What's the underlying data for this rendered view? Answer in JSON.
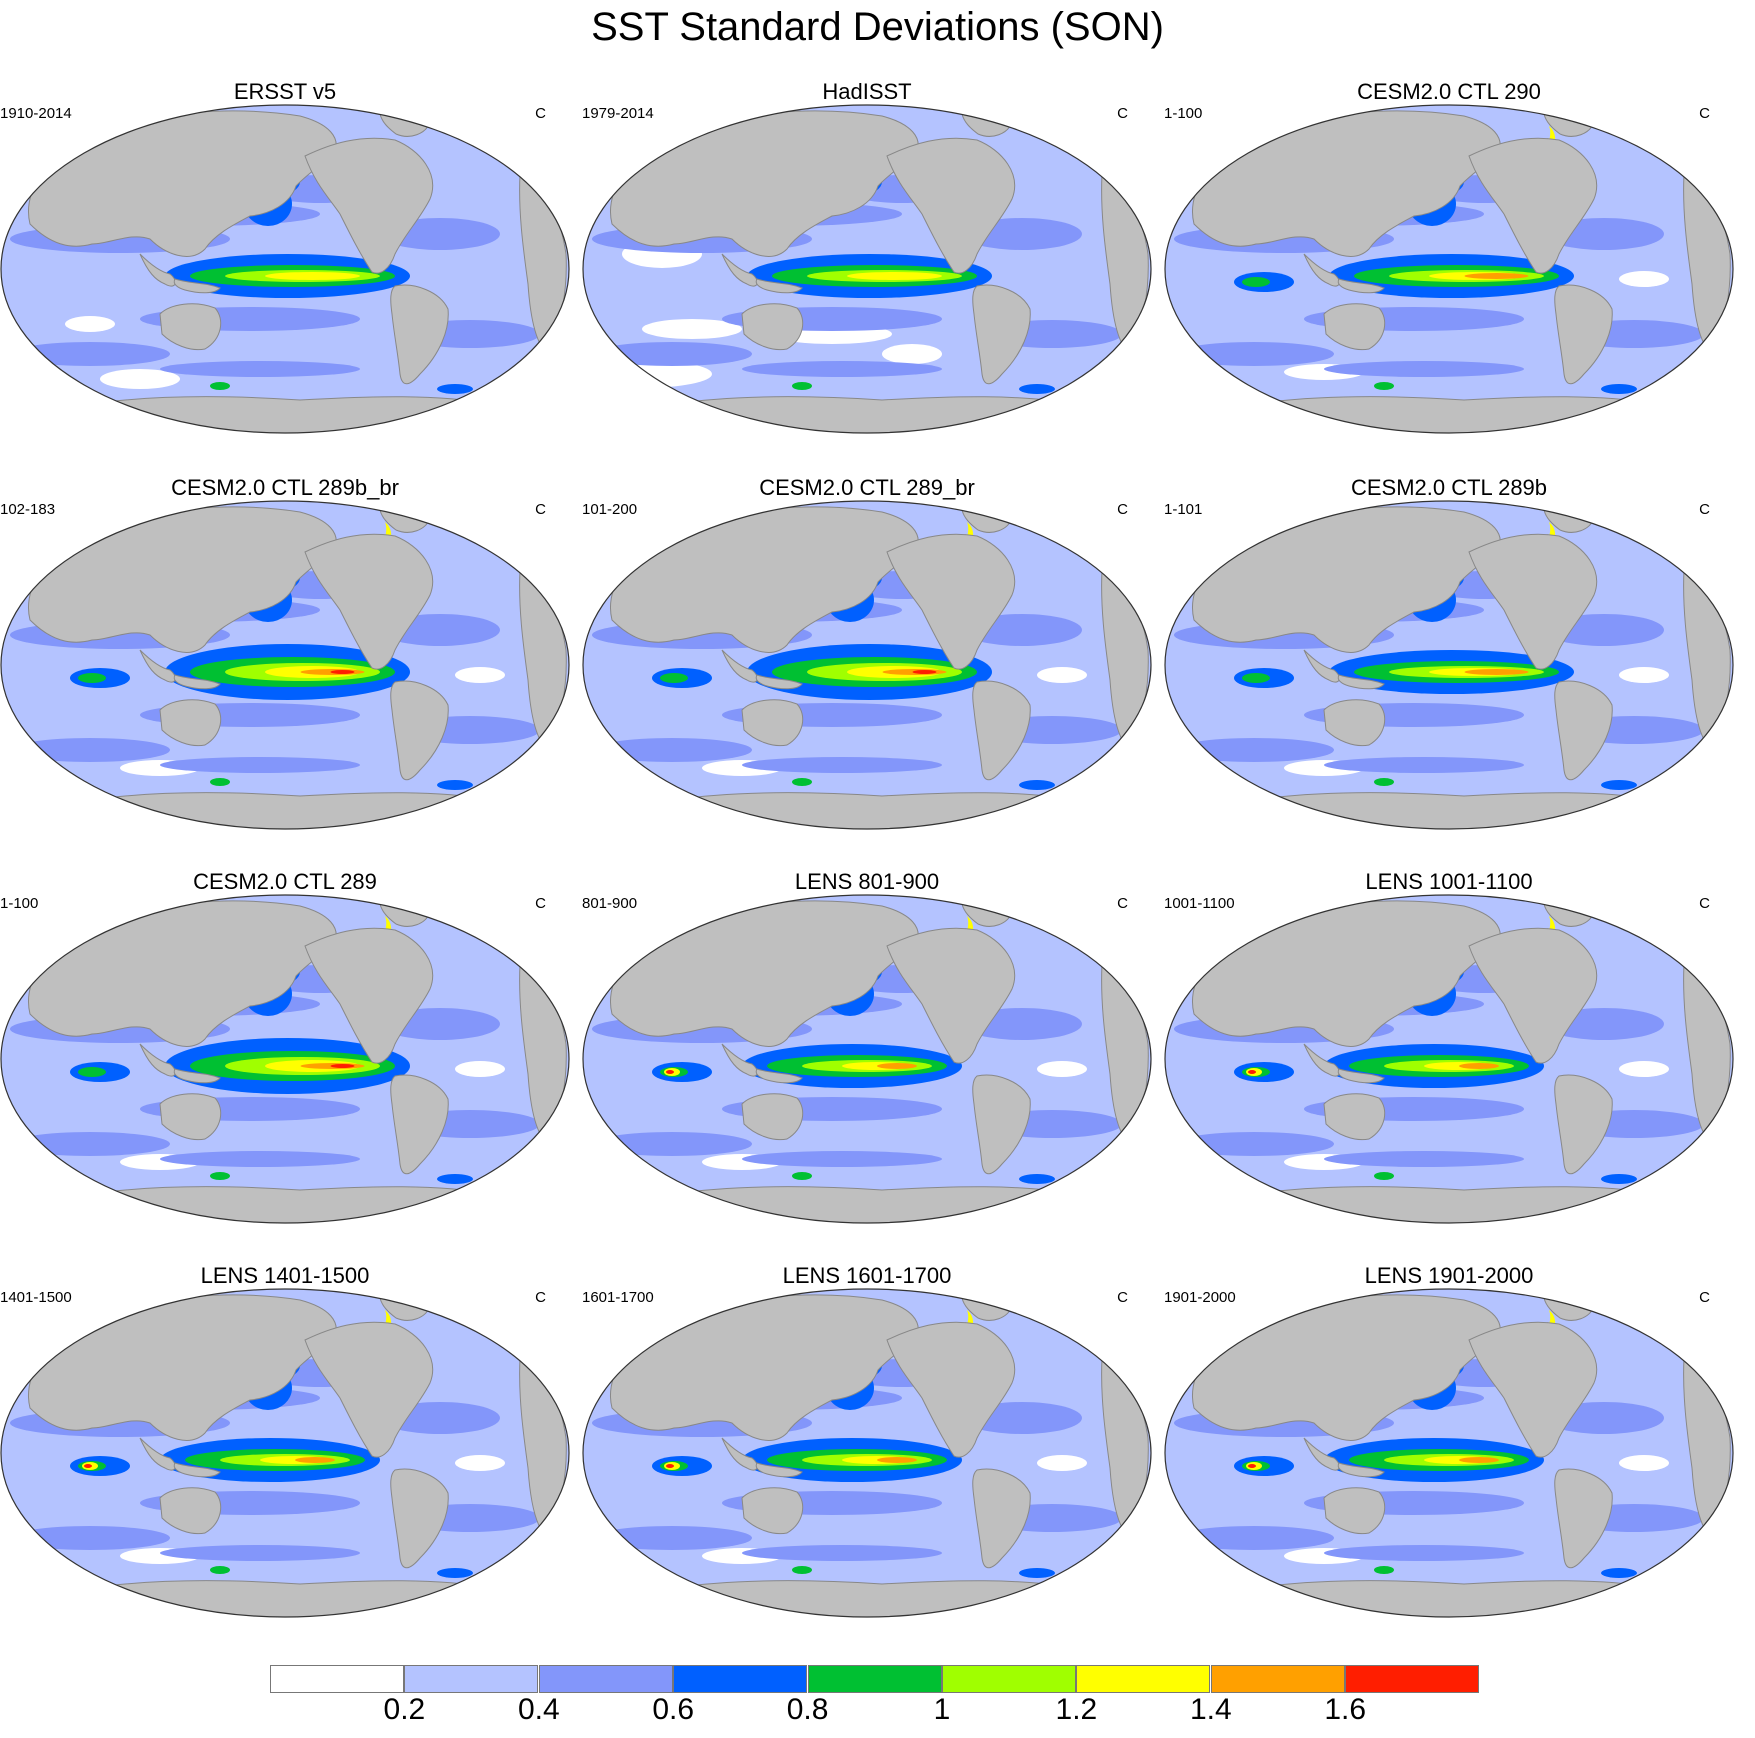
{
  "figure": {
    "title": "SST Standard Deviations (SON)",
    "units": "C"
  },
  "panels": [
    {
      "title": "ERSST v5",
      "period": "1910-2014",
      "units": "C",
      "style": "obs-ersst"
    },
    {
      "title": "HadISST",
      "period": "1979-2014",
      "units": "C",
      "style": "obs-hadisst"
    },
    {
      "title": "CESM2.0 CTL 290",
      "period": "1-100",
      "units": "C",
      "style": "model"
    },
    {
      "title": "CESM2.0 CTL 289b_br",
      "period": "102-183",
      "units": "C",
      "style": "model-strong"
    },
    {
      "title": "CESM2.0 CTL 289_br",
      "period": "101-200",
      "units": "C",
      "style": "model-strong"
    },
    {
      "title": "CESM2.0 CTL 289b",
      "period": "1-101",
      "units": "C",
      "style": "model"
    },
    {
      "title": "CESM2.0 CTL 289",
      "period": "1-100",
      "units": "C",
      "style": "model-strong"
    },
    {
      "title": "LENS 801-900",
      "period": "801-900",
      "units": "C",
      "style": "lens"
    },
    {
      "title": "LENS 1001-1100",
      "period": "1001-1100",
      "units": "C",
      "style": "lens"
    },
    {
      "title": "LENS 1401-1500",
      "period": "1401-1500",
      "units": "C",
      "style": "lens"
    },
    {
      "title": "LENS 1601-1700",
      "period": "1601-1700",
      "units": "C",
      "style": "lens"
    },
    {
      "title": "LENS 1901-2000",
      "period": "1901-2000",
      "units": "C",
      "style": "lens"
    }
  ],
  "colorbar": {
    "colors": [
      "#ffffff",
      "#b4c3ff",
      "#8396fa",
      "#0060ff",
      "#00c032",
      "#a0ff00",
      "#ffff00",
      "#ffa000",
      "#ff1e00"
    ],
    "labels": [
      "0.2",
      "0.4",
      "0.6",
      "0.8",
      "1",
      "1.2",
      "1.4",
      "1.6"
    ]
  },
  "map_colors": {
    "land": "#bfbfbf",
    "land_edge": "#888888",
    "ocean_base": "#b4c3ff"
  }
}
